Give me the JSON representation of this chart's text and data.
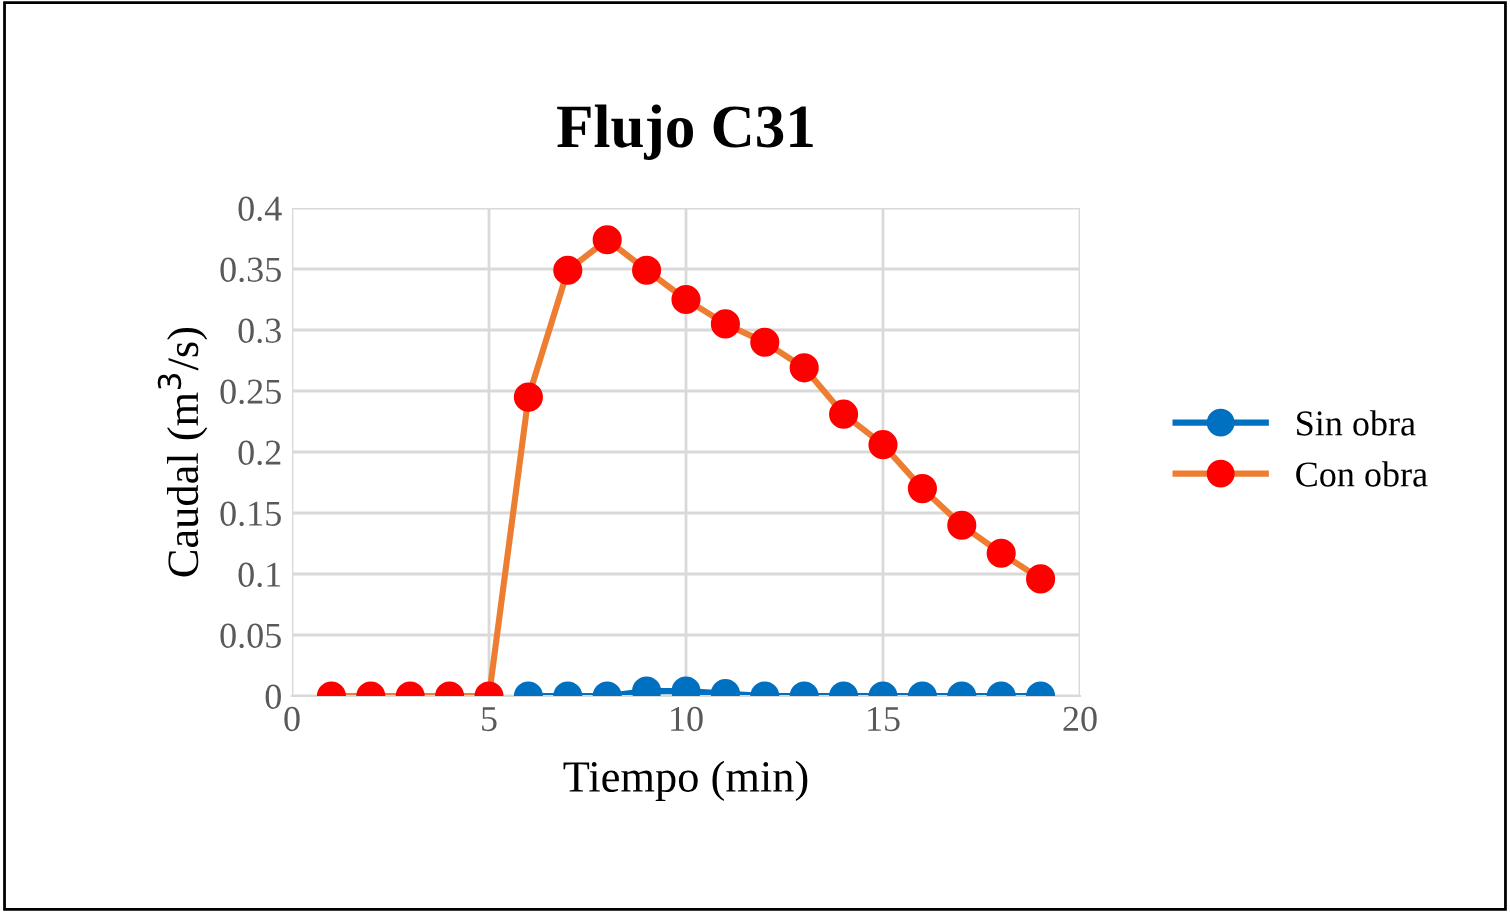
{
  "chart_data": {
    "type": "line",
    "title": "Flujo C31",
    "xlabel": "Tiempo (min)",
    "ylabel": "Caudal (m$^{3}$/s)",
    "x": [
      1,
      2,
      3,
      4,
      5,
      6,
      7,
      8,
      9,
      10,
      11,
      12,
      13,
      14,
      15,
      16,
      17,
      18,
      19
    ],
    "series": [
      {
        "name": "Sin obra",
        "color": "#0070c0",
        "values": [
          null,
          null,
          null,
          null,
          null,
          0,
          0,
          0,
          0.004,
          0.004,
          0.002,
          0,
          0,
          0,
          0,
          0,
          0,
          0,
          0
        ]
      },
      {
        "name": "Con obra",
        "color": "#ed7d31",
        "colors": [
          "#ff0000",
          "#ff0000",
          "#ff0000",
          "#ff0000",
          "#ff0000",
          "#ff0000",
          "#ff0000",
          "#ff0000",
          "#ff0000",
          "#ff0000",
          "#ff0000",
          "#ff0000",
          "#ff0000",
          "#ff0000",
          "#ff0000",
          "#ff0000",
          "#ff0000",
          "#ff0000",
          "#ff0000"
        ],
        "values": [
          0,
          0,
          0,
          0,
          0,
          0.245,
          0.349,
          0.374,
          0.349,
          0.325,
          0.305,
          0.29,
          0.269,
          0.231,
          0.206,
          0.17,
          0.14,
          0.117,
          0.096
        ]
      }
    ],
    "xlim": [
      0,
      20
    ],
    "xticks": [
      0,
      5,
      10,
      15,
      20
    ],
    "ylim": [
      0,
      0.4
    ],
    "yticks": [
      {
        "value": 0,
        "label": "0"
      },
      {
        "value": 0.05,
        "label": "0.05"
      },
      {
        "value": 0.1,
        "label": "0.1"
      },
      {
        "value": 0.15,
        "label": "0.15"
      },
      {
        "value": 0.2,
        "label": "0.2"
      },
      {
        "value": 0.25,
        "label": "0.25"
      },
      {
        "value": 0.3,
        "label": "0.3"
      },
      {
        "value": 0.35,
        "label": "0.35"
      },
      {
        "value": 0.4,
        "label": "0.4"
      }
    ],
    "grid": true,
    "legend": "right",
    "marker": "circle",
    "line_style": "solid"
  }
}
